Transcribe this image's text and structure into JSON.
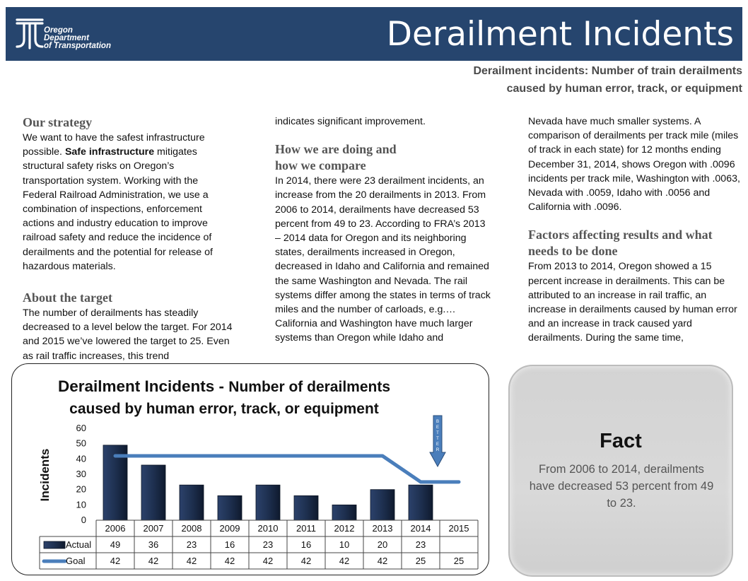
{
  "header": {
    "org_line1": "Oregon",
    "org_line2": "Department",
    "org_line3": "of Transportation",
    "title": "Derailment Incidents",
    "subtitle_line1": "Derailment incidents: Number of train derailments",
    "subtitle_line2": "caused by human error, track, or equipment"
  },
  "col1": {
    "strategy_heading": "Our strategy",
    "strategy_text_a": "We want to have the safest infrastructure possible. ",
    "strategy_bold": "Safe infrastructure",
    "strategy_text_b": " mitigates structural safety risks on Oregon’s transportation system. Working with the Federal Railroad Administration, we use a combination of inspections, enforcement actions and industry education to improve railroad safety and reduce the incidence of derailments and the potential for release of hazardous materials.",
    "target_heading": "About the target",
    "target_text": "The number of derailments has steadily decreased to a level below the target. For 2014 and 2015 we’ve lowered the target to 25. Even as rail traffic increases, this trend"
  },
  "col2": {
    "continuation": "indicates significant improvement.",
    "doing_heading_line1": "How we are doing and",
    "doing_heading_line2": "how we compare",
    "doing_text": "In 2014, there were 23 derailment incidents, an increase from the 20 derailments in 2013. From 2006 to 2014, derailments have decreased 53 percent from 49 to 23. According to FRA’s 2013 – 2014 data for Oregon and its neighboring states, derailments increased in Oregon, decreased in Idaho and California and remained the same Washington and Nevada. The rail systems differ among the states in terms of track miles and the number of carloads, e.g.… California and Washington have much larger systems than Oregon while Idaho and"
  },
  "col3": {
    "continuation": "Nevada have much smaller systems. A comparison of derailments per track mile (miles of track in each state) for 12 months ending December 31, 2014, shows Oregon with .0096 incidents per track mile, Washington with .0063, Nevada with .0059, Idaho with .0056 and California with .0096.",
    "factors_heading": "Factors affecting results and what needs to be done",
    "factors_text": "From 2013 to 2014, Oregon showed a 15 percent increase in derailments. This can be attributed to an increase in rail traffic, an increase in derailments caused by human error and an increase in track caused yard derailments. During the same time,"
  },
  "fact": {
    "title": "Fact",
    "body": "From 2006 to 2014, derailments have decreased 53 percent from 49 to 23."
  },
  "chart_data": {
    "type": "bar",
    "title": "Derailment Incidents",
    "title_dash": " - ",
    "subtitle": "Number of derailments",
    "subtitle2": "caused by human error, track, or equipment",
    "ylabel": "Incidents",
    "ylim": [
      0,
      60
    ],
    "yticks": [
      0,
      10,
      20,
      30,
      40,
      50,
      60
    ],
    "categories": [
      "2006",
      "2007",
      "2008",
      "2009",
      "2010",
      "2011",
      "2012",
      "2013",
      "2014",
      "2015"
    ],
    "series": [
      {
        "name": "Actual",
        "type": "bar",
        "color": "#1e3050",
        "values": [
          49,
          36,
          23,
          16,
          23,
          16,
          10,
          20,
          23,
          null
        ]
      },
      {
        "name": "Goal",
        "type": "line",
        "color": "#4a7ebb",
        "values": [
          42,
          42,
          42,
          42,
          42,
          42,
          42,
          42,
          25,
          25
        ]
      }
    ],
    "table": {
      "actual_row": [
        "49",
        "36",
        "23",
        "16",
        "23",
        "16",
        "10",
        "20",
        "23",
        ""
      ],
      "goal_row": [
        "42",
        "42",
        "42",
        "42",
        "42",
        "42",
        "42",
        "42",
        "25",
        "25"
      ]
    },
    "arrow_label": "BETTER",
    "arrow_color": "#4a7ebb",
    "grid": false,
    "legend": "table-left"
  }
}
